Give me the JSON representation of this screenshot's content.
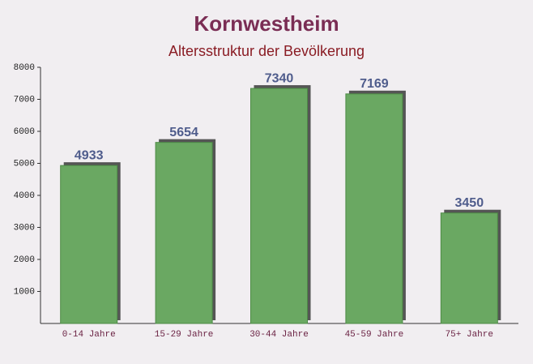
{
  "chart_data": {
    "type": "bar",
    "title": "Kornwestheim",
    "subtitle": "Altersstruktur der Bevölkerung",
    "categories": [
      "0-14 Jahre",
      "15-29 Jahre",
      "30-44 Jahre",
      "45-59 Jahre",
      "75+ Jahre"
    ],
    "values": [
      4933,
      5654,
      7340,
      7169,
      3450
    ],
    "color": "#6aa862",
    "ylim": [
      0,
      8000
    ],
    "yticks": [
      1000,
      2000,
      3000,
      4000,
      5000,
      6000,
      7000,
      8000
    ],
    "grid": false
  }
}
